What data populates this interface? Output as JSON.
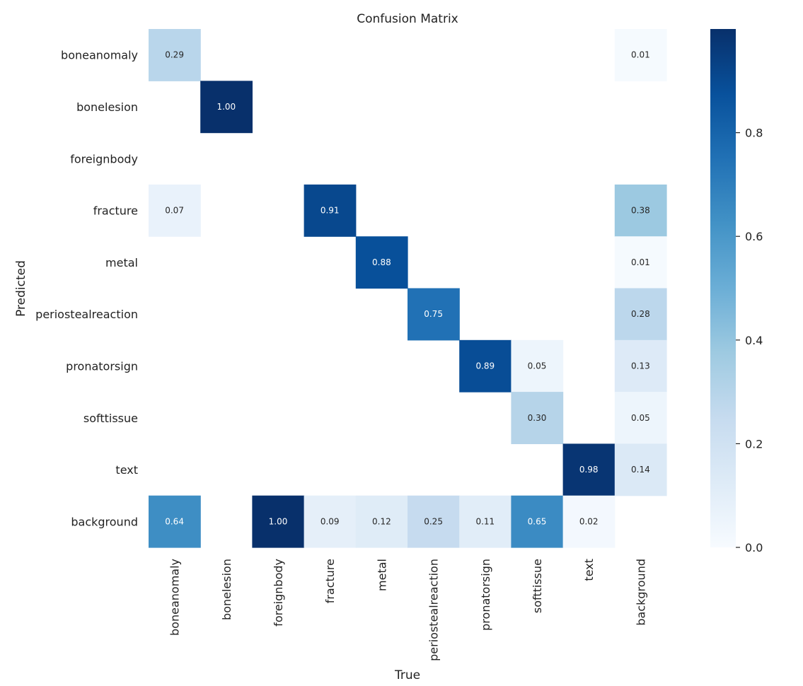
{
  "chart_data": {
    "type": "heatmap",
    "title": "Confusion Matrix",
    "xlabel": "True",
    "ylabel": "Predicted",
    "x_categories": [
      "boneanomaly",
      "bonelesion",
      "foreignbody",
      "fracture",
      "metal",
      "periostealreaction",
      "pronatorsign",
      "softtissue",
      "text",
      "background"
    ],
    "y_categories": [
      "boneanomaly",
      "bonelesion",
      "foreignbody",
      "fracture",
      "metal",
      "periostealreaction",
      "pronatorsign",
      "softtissue",
      "text",
      "background"
    ],
    "values": [
      [
        0.29,
        null,
        null,
        null,
        null,
        null,
        null,
        null,
        null,
        0.01
      ],
      [
        null,
        1.0,
        null,
        null,
        null,
        null,
        null,
        null,
        null,
        null
      ],
      [
        null,
        null,
        null,
        null,
        null,
        null,
        null,
        null,
        null,
        null
      ],
      [
        0.07,
        null,
        null,
        0.91,
        null,
        null,
        null,
        null,
        null,
        0.38
      ],
      [
        null,
        null,
        null,
        null,
        0.88,
        null,
        null,
        null,
        null,
        0.01
      ],
      [
        null,
        null,
        null,
        null,
        null,
        0.75,
        null,
        null,
        null,
        0.28
      ],
      [
        null,
        null,
        null,
        null,
        null,
        null,
        0.89,
        0.05,
        null,
        0.13
      ],
      [
        null,
        null,
        null,
        null,
        null,
        null,
        null,
        0.3,
        null,
        0.05
      ],
      [
        null,
        null,
        null,
        null,
        null,
        null,
        null,
        null,
        0.98,
        0.14
      ],
      [
        0.64,
        null,
        1.0,
        0.09,
        0.12,
        0.25,
        0.11,
        0.65,
        0.02,
        null
      ]
    ],
    "value_format": "2 decimals",
    "colormap": "Blues",
    "vmin": 0.0,
    "vmax": 1.0,
    "colorbar_ticks": [
      0.0,
      0.2,
      0.4,
      0.6,
      0.8
    ],
    "colorbar_tick_labels": [
      "0.0",
      "0.2",
      "0.4",
      "0.6",
      "0.8"
    ],
    "legend_position": "right"
  }
}
